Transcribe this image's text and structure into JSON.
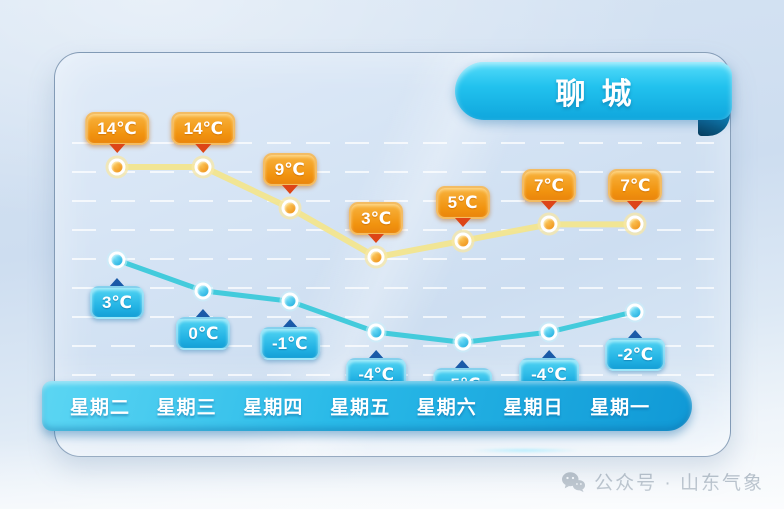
{
  "header": {
    "title": "聊城"
  },
  "watermark": {
    "icon": "wechat-icon",
    "text": "公众号 · 山东气象"
  },
  "chart_data": {
    "type": "line",
    "title": "聊城",
    "unit": "℃",
    "categories": [
      "星期二",
      "星期三",
      "星期四",
      "星期五",
      "星期六",
      "星期日",
      "星期一"
    ],
    "series": [
      {
        "key": "high",
        "name": "high-temperature",
        "values": [
          14,
          14,
          9,
          3,
          5,
          7,
          7
        ],
        "line_color": "#f2e58e",
        "point_color": "#f09018",
        "label_bg": "#f1930f",
        "arrow_color": "#dd4517"
      },
      {
        "key": "low",
        "name": "low-temperature",
        "values": [
          3,
          0,
          -1,
          -4,
          -5,
          -4,
          -2
        ],
        "line_color": "#3bc9da",
        "point_color": "#28bce8",
        "label_bg": "#23b3e4",
        "arrow_color": "#1b5ba8"
      }
    ],
    "grid": "dashed-horizontal-white",
    "legend": "none",
    "axis_bar_color": "#1ba6de",
    "ribbon_color": "#1cb8ea"
  }
}
